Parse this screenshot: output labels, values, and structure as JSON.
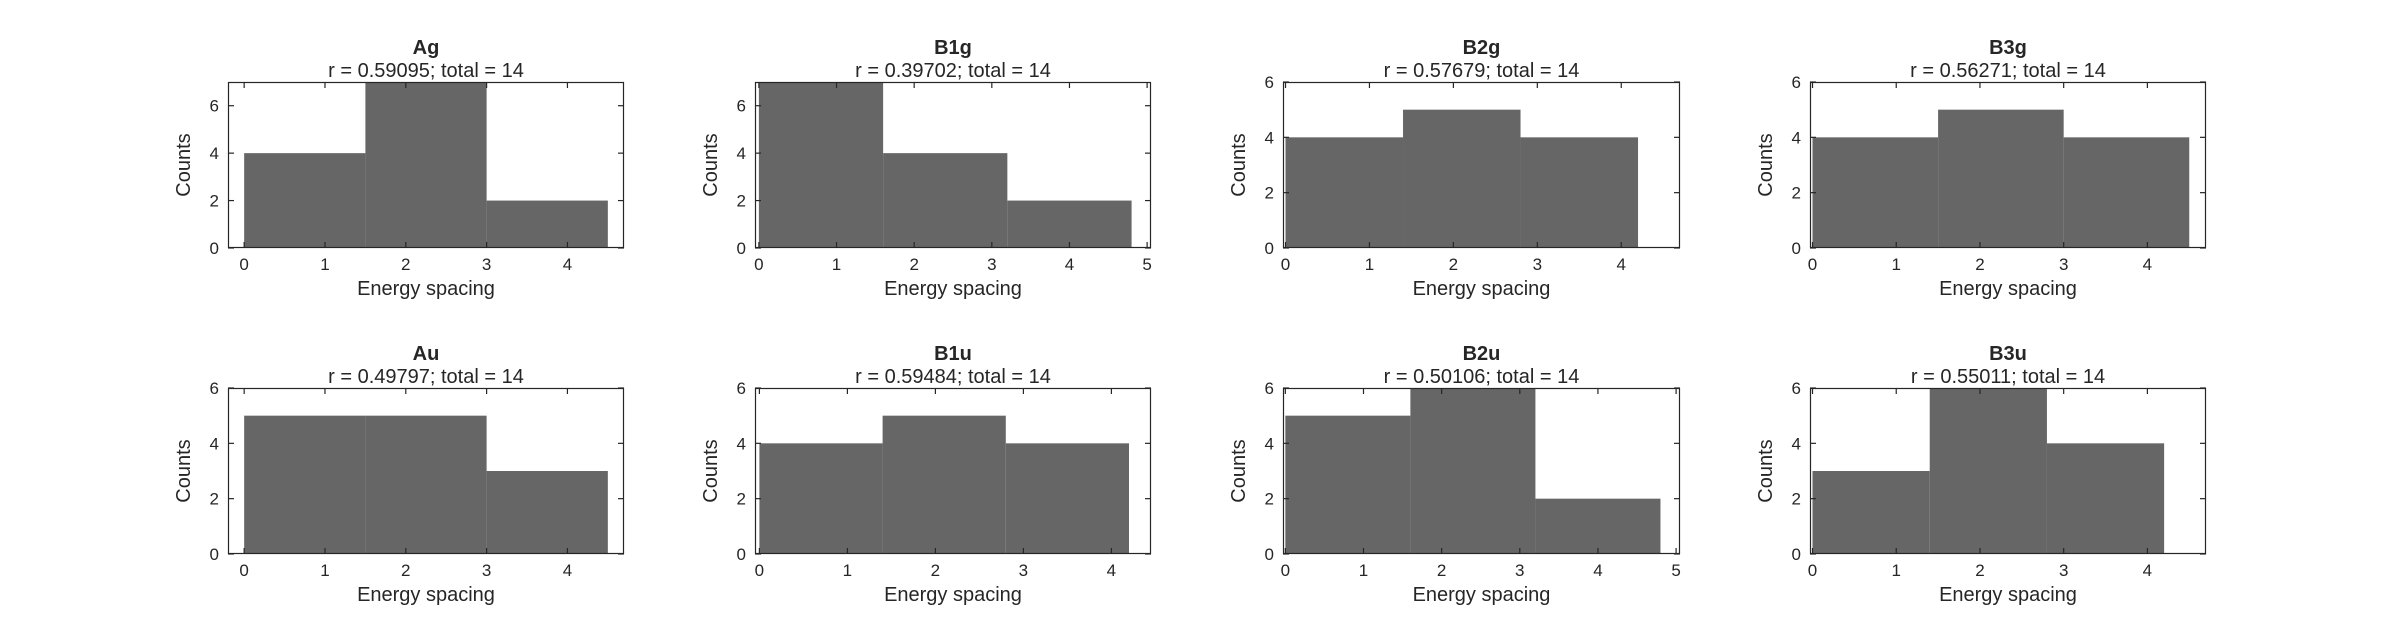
{
  "figure": {
    "background": "#ffffff",
    "bar_color": "#666666",
    "axis_color": "#262626"
  },
  "chart_data": [
    {
      "type": "bar",
      "title": "Ag",
      "subtitle": "r = 0.59095; total = 14",
      "xlabel": "Energy spacing",
      "ylabel": "Counts",
      "bin_edges": [
        0,
        1.5,
        3,
        4.5
      ],
      "values": [
        4,
        7,
        2
      ],
      "xlim": [
        -0.2,
        4.7
      ],
      "ylim": [
        0,
        7
      ],
      "xticks": [
        0,
        1,
        2,
        3,
        4
      ],
      "yticks": [
        0,
        2,
        4,
        6
      ]
    },
    {
      "type": "bar",
      "title": "B1g",
      "subtitle": "r = 0.39702; total = 14",
      "xlabel": "Energy spacing",
      "ylabel": "Counts",
      "bin_edges": [
        0,
        1.6,
        3.2,
        4.8
      ],
      "values": [
        7,
        4,
        2
      ],
      "xlim": [
        -0.05,
        5.05
      ],
      "ylim": [
        0,
        7
      ],
      "xticks": [
        0,
        1,
        2,
        3,
        4,
        5
      ],
      "yticks": [
        0,
        2,
        4,
        6
      ]
    },
    {
      "type": "bar",
      "title": "B2g",
      "subtitle": "r = 0.57679; total = 14",
      "xlabel": "Energy spacing",
      "ylabel": "Counts",
      "bin_edges": [
        0,
        1.4,
        2.8,
        4.2
      ],
      "values": [
        4,
        5,
        4
      ],
      "xlim": [
        -0.03,
        4.7
      ],
      "ylim": [
        0,
        6
      ],
      "xticks": [
        0,
        1,
        2,
        3,
        4
      ],
      "yticks": [
        0,
        2,
        4,
        6
      ]
    },
    {
      "type": "bar",
      "title": "B3g",
      "subtitle": "r = 0.56271; total = 14",
      "xlabel": "Energy spacing",
      "ylabel": "Counts",
      "bin_edges": [
        0,
        1.5,
        3,
        4.5
      ],
      "values": [
        4,
        5,
        4
      ],
      "xlim": [
        -0.03,
        4.7
      ],
      "ylim": [
        0,
        6
      ],
      "xticks": [
        0,
        1,
        2,
        3,
        4
      ],
      "yticks": [
        0,
        2,
        4,
        6
      ]
    },
    {
      "type": "bar",
      "title": "Au",
      "subtitle": "r = 0.49797; total = 14",
      "xlabel": "Energy spacing",
      "ylabel": "Counts",
      "bin_edges": [
        0,
        1.5,
        3,
        4.5
      ],
      "values": [
        5,
        5,
        3
      ],
      "xlim": [
        -0.2,
        4.7
      ],
      "ylim": [
        0,
        6
      ],
      "xticks": [
        0,
        1,
        2,
        3,
        4
      ],
      "yticks": [
        0,
        2,
        4,
        6
      ]
    },
    {
      "type": "bar",
      "title": "B1u",
      "subtitle": "r = 0.59484; total = 14",
      "xlabel": "Energy spacing",
      "ylabel": "Counts",
      "bin_edges": [
        0,
        1.4,
        2.8,
        4.2
      ],
      "values": [
        4,
        5,
        4
      ],
      "xlim": [
        -0.05,
        4.45
      ],
      "ylim": [
        0,
        6
      ],
      "xticks": [
        0,
        1,
        2,
        3,
        4
      ],
      "yticks": [
        0,
        2,
        4,
        6
      ]
    },
    {
      "type": "bar",
      "title": "B2u",
      "subtitle": "r = 0.50106; total = 14",
      "xlabel": "Energy spacing",
      "ylabel": "Counts",
      "bin_edges": [
        0,
        1.6,
        3.2,
        4.8
      ],
      "values": [
        5,
        6,
        2
      ],
      "xlim": [
        -0.03,
        5.05
      ],
      "ylim": [
        0,
        6
      ],
      "xticks": [
        0,
        1,
        2,
        3,
        4,
        5
      ],
      "yticks": [
        0,
        2,
        4,
        6
      ]
    },
    {
      "type": "bar",
      "title": "B3u",
      "subtitle": "r = 0.55011; total = 14",
      "xlabel": "Energy spacing",
      "ylabel": "Counts",
      "bin_edges": [
        0,
        1.4,
        2.8,
        4.2
      ],
      "values": [
        3,
        6,
        4
      ],
      "xlim": [
        -0.03,
        4.7
      ],
      "ylim": [
        0,
        6
      ],
      "xticks": [
        0,
        1,
        2,
        3,
        4
      ],
      "yticks": [
        0,
        2,
        4,
        6
      ]
    }
  ]
}
